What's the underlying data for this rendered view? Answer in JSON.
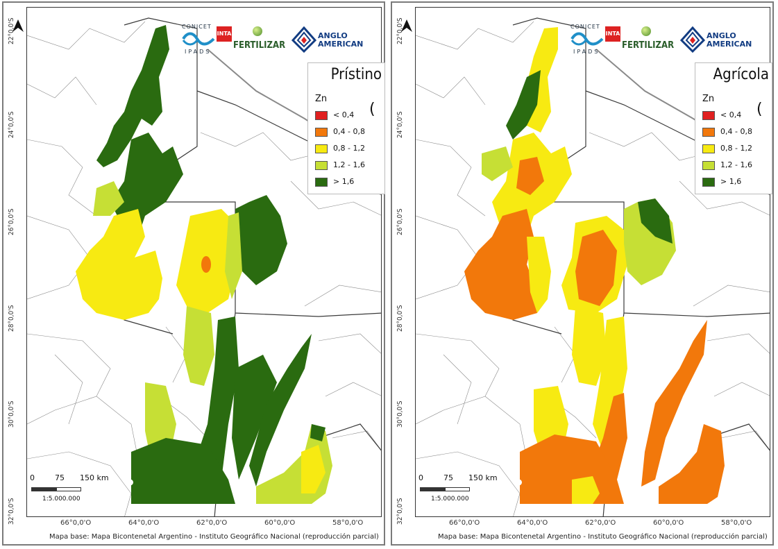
{
  "colors": {
    "red": "#e02020",
    "orange": "#f2780b",
    "yellow": "#f7ea12",
    "lightgreen": "#c6df35",
    "darkgreen": "#2a6b10"
  },
  "latitude_labels": [
    "22°0,0'S",
    "24°0,0'S",
    "26°0,0'S",
    "28°0,0'S",
    "30°0,0'S",
    "32°0,0'S"
  ],
  "longitude_labels": [
    "66°0,0'O",
    "64°0,0'O",
    "62°0,0'O",
    "60°0,0'O",
    "58°0,0'O"
  ],
  "credit": "Mapa base: Mapa Bicontenetal Argentino - Instituto Geográfico Nacional (reproducción parcial)",
  "logos": {
    "conicet": "CONICET",
    "ipads": "IPADS",
    "inta": "INTA",
    "fertilizar": "FERTILIZAR",
    "anglo_line1": "ANGLO",
    "anglo_line2": "AMERICAN"
  },
  "scale": {
    "ticks": [
      "0",
      "75",
      "150 km"
    ],
    "ratio": "1:5.000.000"
  },
  "legend": {
    "variable": "Zn",
    "paren": "(",
    "classes": [
      {
        "label": "< 0,4",
        "color": "#e02020"
      },
      {
        "label": "0,4 - 0,8",
        "color": "#f2780b"
      },
      {
        "label": "0,8 - 1,2",
        "color": "#f7ea12"
      },
      {
        "label": "1,2 - 1,6",
        "color": "#c6df35"
      },
      {
        "label": "> 1,6",
        "color": "#2a6b10"
      }
    ]
  },
  "maps": [
    {
      "title": "Prístino"
    },
    {
      "title": "Agrícola"
    }
  ]
}
